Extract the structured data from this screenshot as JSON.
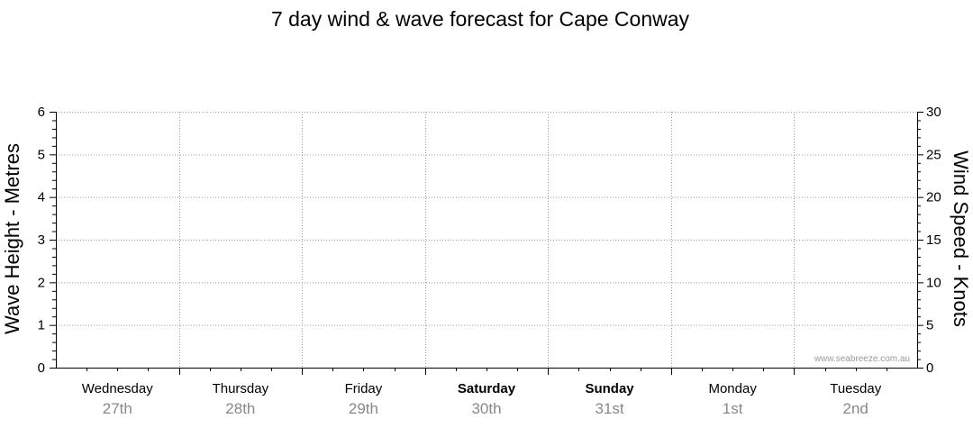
{
  "chart_data": {
    "type": "line",
    "title": "7 day wind & wave forecast for Cape Conway",
    "ylabel_left": "Wave Height - Metres",
    "ylabel_right": "Wind Speed - Knots",
    "ylim_left": [
      0,
      6
    ],
    "ylim_right": [
      0,
      30
    ],
    "yticks_left": [
      "0",
      "1",
      "2",
      "3",
      "4",
      "5",
      "6"
    ],
    "yticks_right": [
      "0",
      "5",
      "10",
      "15",
      "20",
      "25",
      "30"
    ],
    "days": [
      {
        "name": "Wednesday",
        "date": "27th",
        "weekend": false
      },
      {
        "name": "Thursday",
        "date": "28th",
        "weekend": false
      },
      {
        "name": "Friday",
        "date": "29th",
        "weekend": false
      },
      {
        "name": "Saturday",
        "date": "30th",
        "weekend": true
      },
      {
        "name": "Sunday",
        "date": "31st",
        "weekend": true
      },
      {
        "name": "Monday",
        "date": "1st",
        "weekend": false
      },
      {
        "name": "Tuesday",
        "date": "2nd",
        "weekend": false
      }
    ],
    "series": [],
    "grid": true,
    "watermark": "www.seabreeze.com.au",
    "colors": {
      "axis": "#000000",
      "grid": "#9a9a9a",
      "day_label": "#000000",
      "date_label": "#888888",
      "watermark": "#9a9a9a"
    }
  }
}
